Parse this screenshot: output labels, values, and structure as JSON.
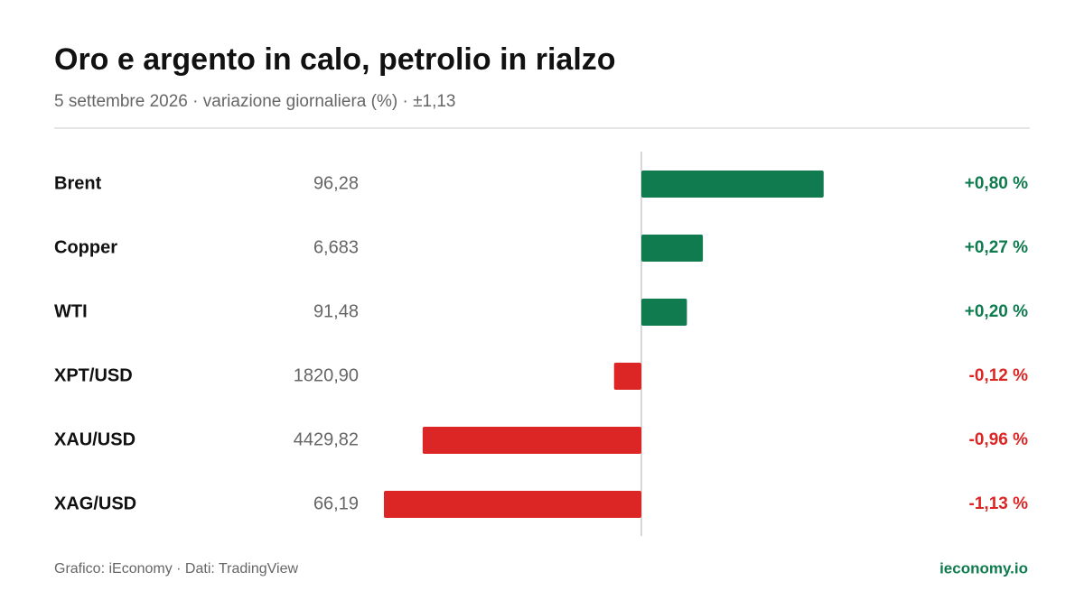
{
  "chart_data": {
    "type": "diverging-bar",
    "title": "Oro e argento in calo, petrolio in rialzo",
    "subtitle": "5 settembre 2026 · variazione giornaliera (%) · ±1,13",
    "categories": [
      "Brent",
      "Copper",
      "WTI",
      "XPT/USD",
      "XAU/USD",
      "XAG/USD"
    ],
    "prices": [
      "96,28",
      "6,683",
      "91,48",
      "1820,90",
      "4429,82",
      "66,19"
    ],
    "values": [
      0.8,
      0.27,
      0.2,
      -0.12,
      -0.96,
      -1.13
    ],
    "value_labels": [
      "+0,80 %",
      "+0,27 %",
      "+0,20 %",
      "-0,12 %",
      "-0,96 %",
      "-1,13 %"
    ],
    "positive_color": "#0f7b4f",
    "negative_color": "#dc2626",
    "xlim": [
      -1.13,
      1.13
    ],
    "source": "Grafico: iEconomy · Dati: TradingView",
    "site": "ieconomy.io"
  }
}
